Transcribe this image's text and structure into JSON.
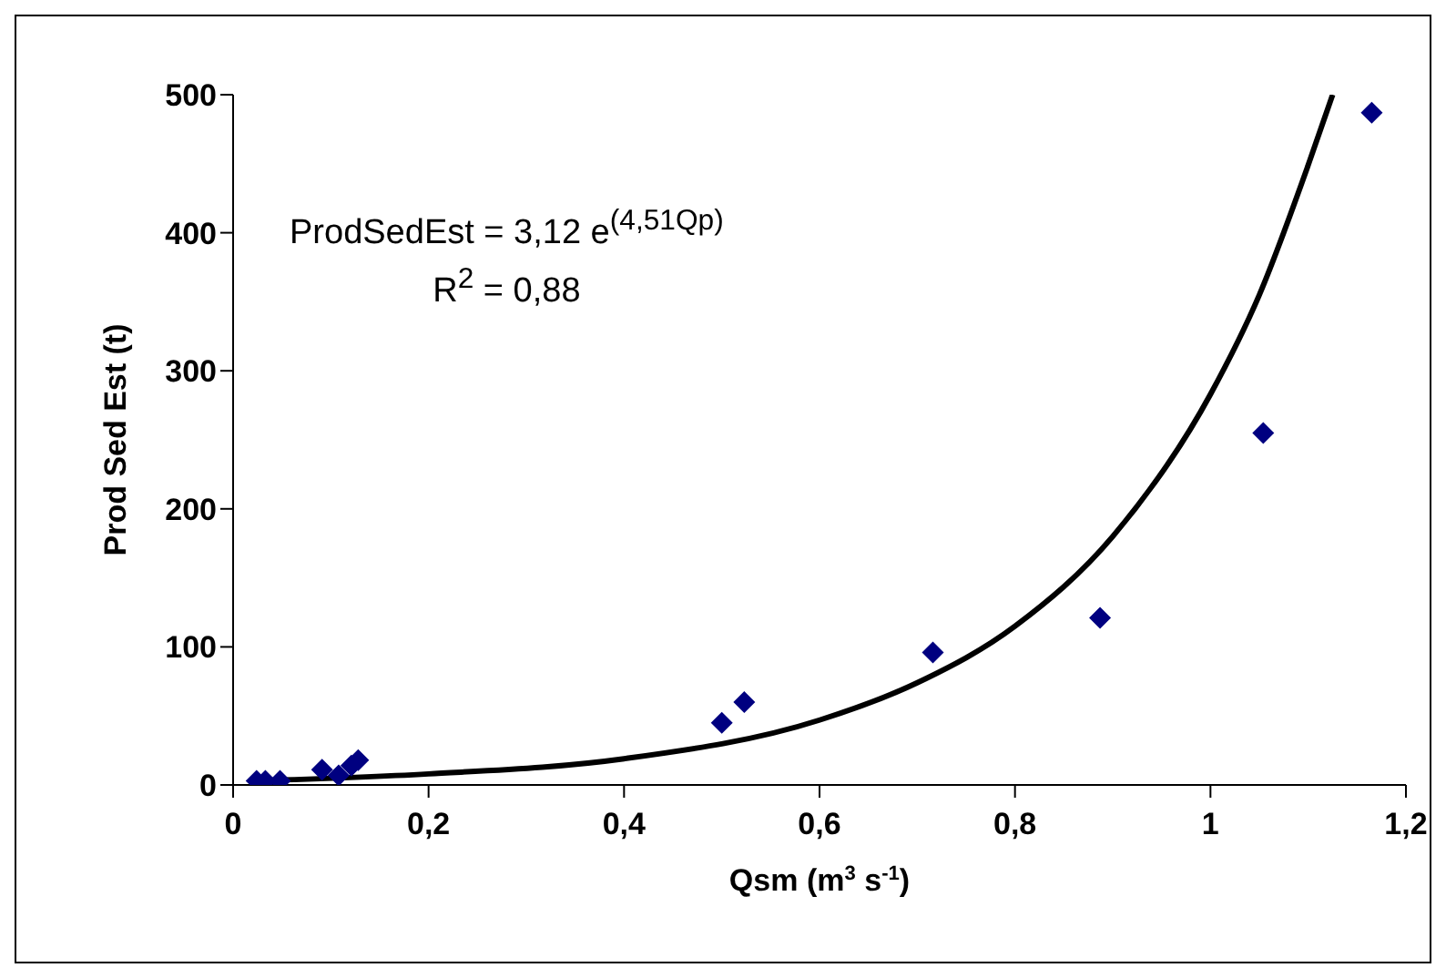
{
  "chart_data": {
    "type": "scatter",
    "xlabel": "Qsm (m$^{3}$ s$^{-1}$)",
    "ylabel": "Prod Sed Est (t)",
    "annotations": [
      "ProdSedEst = 3,12 e$^{(4,51Qp)}$",
      "R$^{2}$ = 0,88"
    ],
    "xlim": [
      0,
      1.2
    ],
    "xticks": [
      0,
      {
        "value": 0.2,
        "label": "0,2"
      },
      {
        "value": 0.4,
        "label": "0,4"
      },
      {
        "value": 0.6,
        "label": "0,6"
      },
      {
        "value": 0.8,
        "label": "0,8"
      },
      1,
      {
        "value": 1.2,
        "label": "1,2"
      }
    ],
    "ylim": [
      0,
      500
    ],
    "yticks": [
      0,
      100,
      200,
      300,
      400,
      500
    ],
    "series": [
      {
        "marker": "diamond",
        "color": "#000080",
        "x": [
          0.024,
          0.033,
          0.048,
          0.091,
          0.108,
          0.121,
          0.128,
          0.5,
          0.523,
          0.716,
          0.887,
          1.054,
          1.165
        ],
        "values": [
          3,
          3,
          3,
          11,
          7,
          14,
          18,
          45,
          60,
          96,
          121,
          255,
          487
        ]
      },
      {
        "type": "line",
        "marker": "none",
        "color": "#000000",
        "x": [
          0.02,
          0.2,
          0.4,
          0.6,
          0.7,
          0.8,
          0.9,
          1.0,
          1.05,
          1.1,
          1.125
        ],
        "values": [
          3,
          8,
          19,
          47,
          74,
          115,
          180,
          283,
          355,
          449,
          500
        ]
      }
    ]
  }
}
